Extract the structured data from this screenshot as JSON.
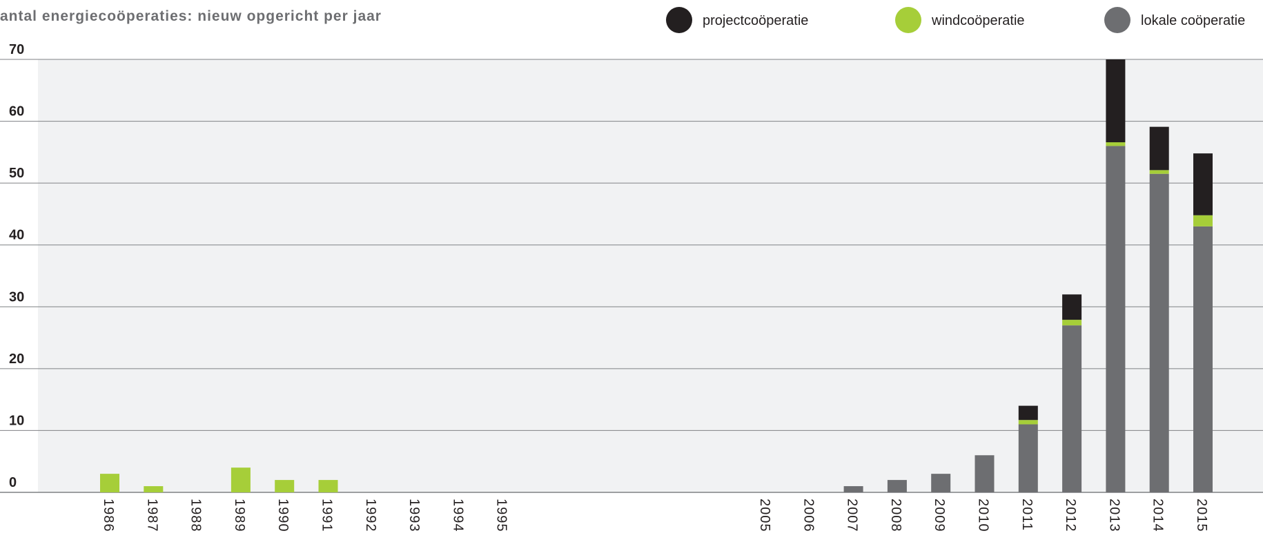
{
  "chart_data": {
    "type": "bar",
    "stacked": true,
    "title": "antal energiecoöperaties: nieuw opgericht per jaar",
    "xlabel": "",
    "ylabel": "",
    "ylim": [
      0,
      70
    ],
    "yticks": [
      0,
      10,
      20,
      30,
      40,
      50,
      60,
      70
    ],
    "grid": true,
    "legend_position": "top",
    "categories": [
      "1986",
      "1987",
      "1988",
      "1989",
      "1990",
      "1991",
      "1992",
      "1993",
      "1994",
      "1995",
      "2005",
      "2006",
      "2007",
      "2008",
      "2009",
      "2010",
      "2011",
      "2012",
      "2013",
      "2014",
      "2015"
    ],
    "series": [
      {
        "name": "lokale coöperatie",
        "color": "#6d6e71",
        "values": [
          0,
          0,
          0,
          0,
          0,
          0,
          0,
          0,
          0,
          0,
          0,
          0,
          1,
          2,
          3,
          6,
          11,
          27,
          56,
          51.5,
          43
        ]
      },
      {
        "name": "windcoöperatie",
        "color": "#a6ce39",
        "values": [
          3,
          1,
          0,
          4,
          2,
          2,
          0,
          0,
          0,
          0,
          0,
          0,
          0,
          0,
          0,
          0,
          0.7,
          0.9,
          0.6,
          0.6,
          1.8
        ]
      },
      {
        "name": "projectcoöperatie",
        "color": "#231f20",
        "values": [
          0,
          0,
          0,
          0,
          0,
          0,
          0,
          0,
          0,
          0,
          0,
          0,
          0,
          0,
          0,
          0,
          2.3,
          4.1,
          13.4,
          7,
          10
        ]
      }
    ],
    "legend_order": [
      "projectcoöperatie",
      "windcoöperatie",
      "lokale coöperatie"
    ],
    "plot_background": "#f1f2f3",
    "grid_color": "#7f8184"
  }
}
